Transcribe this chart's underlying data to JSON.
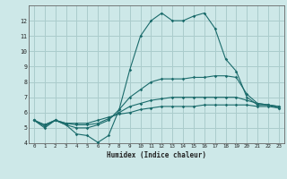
{
  "title": "",
  "xlabel": "Humidex (Indice chaleur)",
  "bg_color": "#cde8e8",
  "grid_color": "#aacccc",
  "line_color": "#1a6b6b",
  "xlim": [
    -0.5,
    23.5
  ],
  "ylim": [
    4,
    13
  ],
  "yticks": [
    4,
    5,
    6,
    7,
    8,
    9,
    10,
    11,
    12
  ],
  "xticks": [
    0,
    1,
    2,
    3,
    4,
    5,
    6,
    7,
    8,
    9,
    10,
    11,
    12,
    13,
    14,
    15,
    16,
    17,
    18,
    19,
    20,
    21,
    22,
    23
  ],
  "series": [
    [
      5.5,
      5.0,
      5.5,
      5.2,
      4.6,
      4.5,
      4.05,
      4.5,
      6.2,
      8.8,
      11.0,
      12.0,
      12.5,
      12.0,
      12.0,
      12.3,
      12.5,
      11.5,
      9.5,
      8.7,
      7.0,
      6.5,
      6.5,
      6.3
    ],
    [
      5.5,
      5.1,
      5.5,
      5.2,
      5.0,
      5.0,
      5.2,
      5.5,
      6.2,
      7.0,
      7.5,
      8.0,
      8.2,
      8.2,
      8.2,
      8.3,
      8.3,
      8.4,
      8.4,
      8.3,
      7.2,
      6.6,
      6.5,
      6.4
    ],
    [
      5.5,
      5.2,
      5.5,
      5.3,
      5.2,
      5.2,
      5.3,
      5.6,
      6.0,
      6.4,
      6.6,
      6.8,
      6.9,
      7.0,
      7.0,
      7.0,
      7.0,
      7.0,
      7.0,
      7.0,
      6.8,
      6.6,
      6.5,
      6.4
    ],
    [
      5.5,
      5.2,
      5.5,
      5.3,
      5.3,
      5.3,
      5.5,
      5.7,
      5.9,
      6.0,
      6.2,
      6.3,
      6.4,
      6.4,
      6.4,
      6.4,
      6.5,
      6.5,
      6.5,
      6.5,
      6.5,
      6.4,
      6.4,
      6.3
    ]
  ]
}
